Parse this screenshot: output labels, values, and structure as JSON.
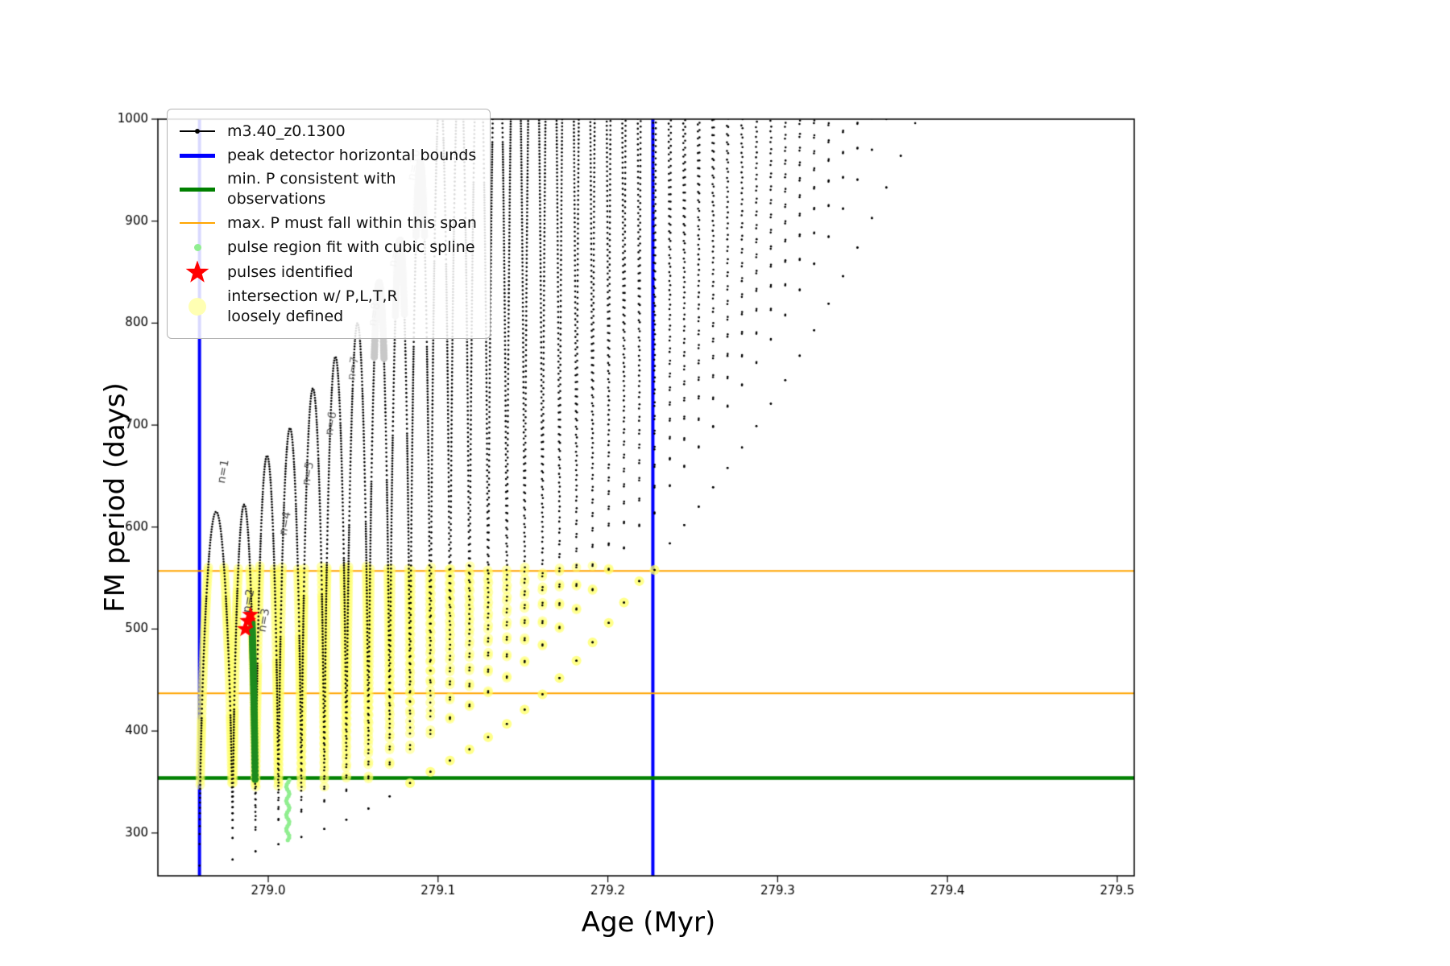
{
  "figure": {
    "background": "#ffffff"
  },
  "legend": {
    "items": [
      {
        "label": "m3.40_z0.1300",
        "marker": "line-dot",
        "color": "#000000"
      },
      {
        "label": "peak detector horizontal bounds",
        "marker": "thick-line",
        "color": "#0000ff"
      },
      {
        "label": "min. P consistent with observations",
        "marker": "thick-line",
        "color": "#008000"
      },
      {
        "label": "max. P must fall within this span",
        "marker": "line",
        "color": "#ffa500"
      },
      {
        "label": "pulse region fit with cubic spline",
        "marker": "dot-small",
        "color": "#90ee90"
      },
      {
        "label": "pulses identified",
        "marker": "star",
        "color": "#ff0000"
      },
      {
        "label": "intersection w/ P,L,T,R\nloosely defined",
        "marker": "dot-large",
        "color": "#ffffb3"
      }
    ]
  },
  "chart_data": {
    "type": "line",
    "title": "",
    "xlabel": "Age (Myr)",
    "ylabel": "FM period (days)",
    "xlim": [
      278.935,
      279.51
    ],
    "ylim": [
      258,
      1000
    ],
    "xticks": [
      279.0,
      279.1,
      279.2,
      279.3,
      279.4,
      279.5
    ],
    "xtick_labels": [
      "279.0",
      "279.1",
      "279.2",
      "279.3",
      "279.4",
      "279.5"
    ],
    "yticks": [
      300,
      400,
      500,
      600,
      700,
      800,
      900,
      1000
    ],
    "ytick_labels": [
      "300",
      "400",
      "500",
      "600",
      "700",
      "800",
      "900",
      "1000"
    ],
    "grid": false,
    "legend_position": "upper left",
    "track": {
      "name": "m3.40_z0.1300",
      "color": "#000000",
      "shape_exponent": 0.55,
      "troughs": [
        [
          278.9595,
          268
        ],
        [
          278.979,
          274
        ],
        [
          278.9925,
          282
        ],
        [
          279.006,
          289
        ],
        [
          279.0195,
          296
        ],
        [
          279.033,
          304
        ],
        [
          279.046,
          313
        ],
        [
          279.059,
          324
        ],
        [
          279.0715,
          336
        ],
        [
          279.0835,
          349
        ],
        [
          279.0955,
          360
        ],
        [
          279.107,
          371
        ],
        [
          279.1185,
          382
        ],
        [
          279.1295,
          394
        ],
        [
          279.1405,
          407
        ],
        [
          279.151,
          421
        ],
        [
          279.1615,
          436
        ],
        [
          279.1715,
          452
        ],
        [
          279.1815,
          469
        ],
        [
          279.191,
          487
        ],
        [
          279.2005,
          506
        ],
        [
          279.2095,
          526
        ],
        [
          279.2185,
          547
        ],
        [
          279.2275,
          558
        ],
        [
          279.2365,
          584
        ],
        [
          279.245,
          602
        ],
        [
          279.2535,
          620
        ],
        [
          279.262,
          639
        ],
        [
          279.2705,
          658
        ],
        [
          279.279,
          678
        ],
        [
          279.2875,
          699
        ],
        [
          279.296,
          721
        ],
        [
          279.3045,
          744
        ],
        [
          279.313,
          768
        ],
        [
          279.3215,
          793
        ],
        [
          279.33,
          819
        ],
        [
          279.3385,
          846
        ],
        [
          279.347,
          874
        ],
        [
          279.3555,
          903
        ],
        [
          279.364,
          933
        ],
        [
          279.3725,
          964
        ],
        [
          279.381,
          996
        ]
      ],
      "peaks": [
        615,
        622,
        670,
        697,
        736,
        767,
        800,
        840,
        882,
        958,
        1030,
        1065,
        1100,
        1135,
        1170,
        1205,
        1240,
        1275,
        1310,
        1345,
        1380,
        1415,
        1450,
        1485,
        1520,
        1555,
        1590,
        1625,
        1660,
        1695,
        1730,
        1765,
        1800,
        1835,
        1870,
        1905,
        1940,
        1975,
        2010,
        2045,
        2080
      ]
    },
    "peak_detector_bounds": {
      "color": "#0000ff",
      "x": [
        278.9595,
        279.2265
      ],
      "linewidth": 4
    },
    "min_P_line": {
      "color": "#008000",
      "y": 354,
      "linewidth": 4.5
    },
    "max_P_span": {
      "color": "#ffa500",
      "y": [
        557,
        437
      ],
      "linewidth": 2
    },
    "intersection_region": {
      "color": "#ffff64",
      "alpha": 0.5,
      "y_range": [
        345,
        562
      ],
      "x_range": [
        278.952,
        279.2315
      ],
      "marker_radius_px": 6
    },
    "spline_fit_bar": {
      "color": "#1e8b1e",
      "arch_index": 1,
      "y_range": [
        350,
        508
      ]
    },
    "spline_scatter": {
      "color": "#90ee90",
      "x": 279.0115,
      "y_range": [
        293,
        352
      ]
    },
    "pulses": {
      "color": "#ff0000",
      "points": [
        [
          278.9865,
          500
        ],
        [
          278.988,
          508
        ],
        [
          278.9895,
          514
        ]
      ]
    },
    "gray_arch_tops": {
      "color": "#c8c8c8",
      "arches": [
        7,
        8,
        9
      ],
      "depth": 75
    },
    "n_labels": [
      {
        "text": "n=1",
        "x": 278.9725,
        "y": 643,
        "color": "#444444"
      },
      {
        "text": "n=2",
        "x": 278.9875,
        "y": 516,
        "color": "#444444"
      },
      {
        "text": "n=3",
        "x": 278.9965,
        "y": 497,
        "color": "#4a4a4a"
      },
      {
        "text": "n=4",
        "x": 279.009,
        "y": 592,
        "color": "#505050"
      },
      {
        "text": "n=5",
        "x": 279.0225,
        "y": 641,
        "color": "#5a5a5a"
      },
      {
        "text": "n=6",
        "x": 279.036,
        "y": 690,
        "color": "#666666"
      },
      {
        "text": "n=7",
        "x": 279.049,
        "y": 744,
        "color": "#777777"
      },
      {
        "text": "n=8",
        "x": 279.0615,
        "y": 797,
        "color": "#999999"
      },
      {
        "text": "n=9",
        "x": 279.0735,
        "y": 855,
        "color": "#aaaaaa"
      },
      {
        "text": "n=10",
        "x": 279.0845,
        "y": 940,
        "color": "#bbbbbb"
      }
    ],
    "label_rotation_deg": -80
  }
}
